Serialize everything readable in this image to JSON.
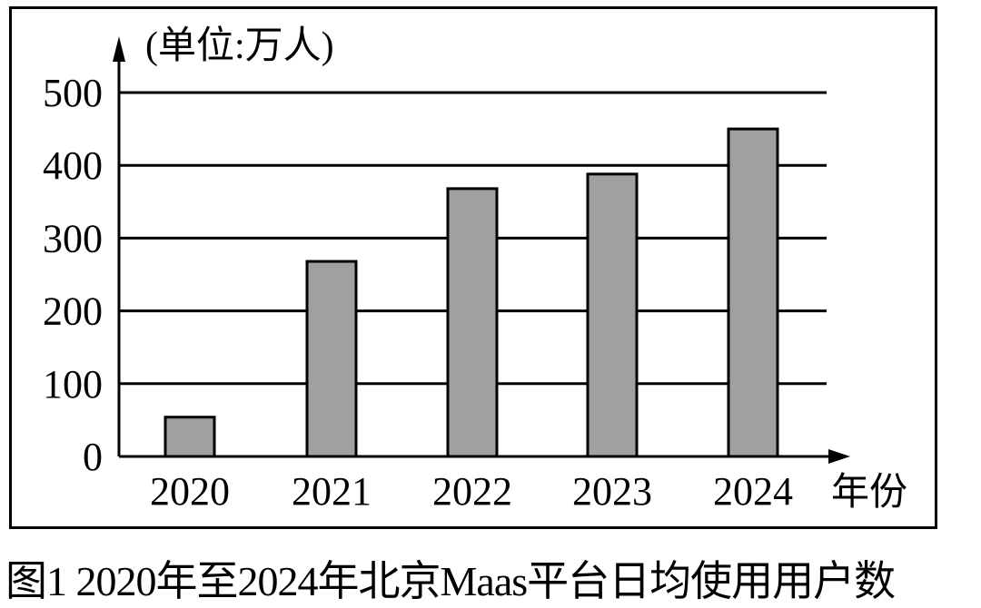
{
  "chart_data": {
    "type": "bar",
    "title": "图1 2020年至2024年北京Maas平台日均使用用户数",
    "unit_label": "(单位:万人)",
    "xlabel": "年份",
    "ylabel": "(单位:万人)",
    "categories": [
      "2020",
      "2021",
      "2022",
      "2023",
      "2024"
    ],
    "values": [
      54,
      268,
      368,
      388,
      450
    ],
    "yticks": [
      "0",
      "100",
      "200",
      "300",
      "400",
      "500"
    ],
    "ylim": [
      0,
      500
    ],
    "grid": true,
    "legend": null,
    "bar_color": "#a0a0a0"
  },
  "caption": "图1  2020年至2024年北京Maas平台日均使用用户数"
}
